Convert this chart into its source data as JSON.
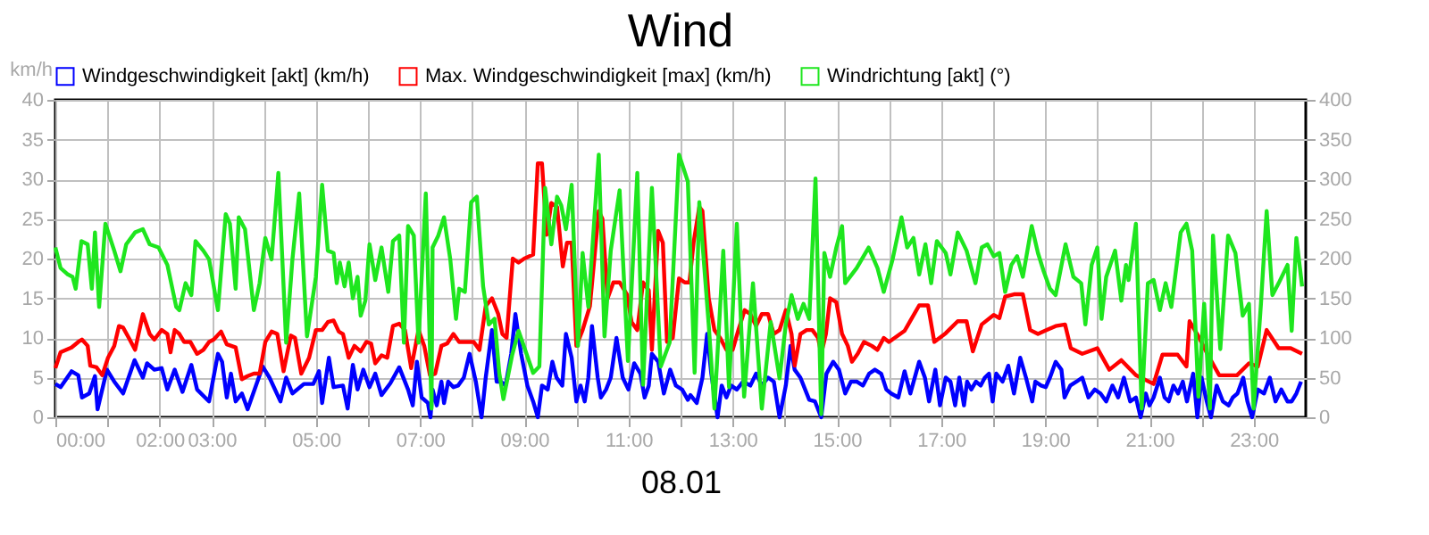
{
  "chart_data": {
    "type": "line",
    "title": "Wind",
    "xlabel": "08.01",
    "ylabel": "km/h",
    "xlim": [
      0,
      24
    ],
    "ylim": [
      0,
      40
    ],
    "y2lim": [
      0,
      400
    ],
    "xticks": [
      {
        "value": 0,
        "label": "00:00"
      },
      {
        "value": 1,
        "label": null
      },
      {
        "value": 2,
        "label": "02:00"
      },
      {
        "value": 3,
        "label": "03:00"
      },
      {
        "value": 4,
        "label": null
      },
      {
        "value": 5,
        "label": "05:00"
      },
      {
        "value": 6,
        "label": null
      },
      {
        "value": 7,
        "label": "07:00"
      },
      {
        "value": 8,
        "label": null
      },
      {
        "value": 9,
        "label": "09:00"
      },
      {
        "value": 10,
        "label": null
      },
      {
        "value": 11,
        "label": "11:00"
      },
      {
        "value": 12,
        "label": null
      },
      {
        "value": 13,
        "label": "13:00"
      },
      {
        "value": 14,
        "label": null
      },
      {
        "value": 15,
        "label": "15:00"
      },
      {
        "value": 16,
        "label": null
      },
      {
        "value": 17,
        "label": "17:00"
      },
      {
        "value": 18,
        "label": null
      },
      {
        "value": 19,
        "label": "19:00"
      },
      {
        "value": 20,
        "label": null
      },
      {
        "value": 21,
        "label": "21:00"
      },
      {
        "value": 22,
        "label": null
      },
      {
        "value": 23,
        "label": "23:00"
      }
    ],
    "yticks": [
      0,
      5,
      10,
      15,
      20,
      25,
      30,
      35,
      40
    ],
    "y2ticks": [
      0,
      50,
      100,
      150,
      200,
      250,
      300,
      350,
      400
    ],
    "grid": true,
    "legend": "top",
    "series": [
      {
        "name": "Windgeschwindigkeit [akt] (km/h)",
        "color": "#0000ff",
        "x": [
          0,
          0.1,
          0.31,
          0.44,
          0.51,
          0.65,
          0.76,
          0.81,
          0.99,
          1.13,
          1.3,
          1.52,
          1.68,
          1.76,
          1.9,
          2.04,
          2.15,
          2.29,
          2.44,
          2.61,
          2.72,
          2.95,
          3.12,
          3.2,
          3.29,
          3.37,
          3.46,
          3.58,
          3.69,
          3.98,
          4.11,
          4.32,
          4.43,
          4.55,
          4.77,
          4.95,
          5.06,
          5.12,
          5.25,
          5.34,
          5.52,
          5.61,
          5.71,
          5.8,
          5.91,
          6.03,
          6.14,
          6.26,
          6.43,
          6.6,
          6.77,
          6.86,
          6.94,
          7.03,
          7.15,
          7.2,
          7.24,
          7.32,
          7.41,
          7.46,
          7.54,
          7.64,
          7.73,
          7.84,
          7.95,
          8.07,
          8.18,
          8.26,
          8.38,
          8.47,
          8.55,
          8.64,
          8.75,
          8.83,
          8.94,
          9.06,
          9.17,
          9.26,
          9.34,
          9.45,
          9.54,
          9.62,
          9.73,
          9.8,
          9.91,
          10.0,
          10.08,
          10.16,
          10.23,
          10.3,
          10.41,
          10.47,
          10.57,
          10.66,
          10.77,
          10.89,
          11.0,
          11.11,
          11.23,
          11.31,
          11.39,
          11.45,
          11.57,
          11.68,
          11.8,
          11.91,
          12.03,
          12.14,
          12.19,
          12.31,
          12.42,
          12.51,
          12.59,
          12.71,
          12.79,
          12.88,
          12.97,
          13.08,
          13.2,
          13.34,
          13.45,
          13.56,
          13.68,
          13.79,
          13.9,
          14.02,
          14.11,
          14.19,
          14.3,
          14.47,
          14.58,
          14.7,
          14.8,
          14.93,
          15.04,
          15.16,
          15.27,
          15.38,
          15.5,
          15.62,
          15.73,
          15.85,
          15.95,
          16.04,
          16.18,
          16.3,
          16.41,
          16.58,
          16.69,
          16.77,
          16.89,
          16.98,
          17.09,
          17.18,
          17.27,
          17.35,
          17.44,
          17.5,
          17.58,
          17.67,
          17.76,
          17.84,
          17.92,
          17.99,
          18.06,
          18.18,
          18.29,
          18.4,
          18.52,
          18.63,
          18.75,
          18.81,
          18.92,
          19.01,
          19.09,
          19.2,
          19.31,
          19.37,
          19.48,
          19.6,
          19.71,
          19.83,
          19.95,
          20.06,
          20.17,
          20.29,
          20.4,
          20.51,
          20.63,
          20.74,
          20.83,
          20.93,
          21.0,
          21.08,
          21.2,
          21.29,
          21.37,
          21.46,
          21.55,
          21.64,
          21.72,
          21.84,
          21.92,
          22.0,
          22.1,
          22.18,
          22.29,
          22.41,
          22.52,
          22.6,
          22.69,
          22.8,
          22.88,
          22.97,
          23.08,
          23.2,
          23.31,
          23.42,
          23.53,
          23.65,
          23.73,
          23.82,
          23.91
        ],
        "values": [
          4.2,
          3.8,
          5.8,
          5.3,
          2.5,
          3,
          5.2,
          1,
          6,
          4.5,
          3,
          7.2,
          5,
          6.8,
          6,
          6.2,
          3.5,
          6,
          3.2,
          6.6,
          3.5,
          2,
          8,
          7,
          2.5,
          5.5,
          2,
          3,
          1,
          6.4,
          5,
          2,
          5,
          3,
          4.2,
          4.2,
          5.8,
          1.8,
          7.5,
          3.8,
          4,
          1.1,
          6.6,
          3.5,
          6,
          3.8,
          5.5,
          2.8,
          4.3,
          6.3,
          3.5,
          1.5,
          7,
          2.5,
          1.8,
          0,
          3.5,
          1.5,
          4.5,
          1.8,
          4.5,
          3.8,
          4,
          5,
          8,
          4.5,
          0,
          5,
          11,
          4.5,
          4.5,
          4,
          8,
          13,
          8,
          4,
          2,
          0,
          4,
          3.5,
          7,
          5,
          4,
          10.5,
          7.5,
          2,
          4,
          2,
          5,
          11.5,
          5,
          2.5,
          3.5,
          5,
          10,
          5,
          3.5,
          6.8,
          5.5,
          2.5,
          4,
          8,
          7,
          3,
          6,
          4,
          3.5,
          2.2,
          2.8,
          1.8,
          5,
          10.5,
          5.5,
          0,
          4,
          2.5,
          4,
          3.5,
          4.5,
          4,
          5.5,
          4,
          5,
          4.5,
          0,
          4,
          9,
          6,
          5,
          2.2,
          2,
          0,
          5.5,
          7,
          6,
          3,
          4.5,
          4.5,
          4,
          5.5,
          6,
          5.5,
          3.5,
          3,
          2.5,
          5.8,
          3,
          7,
          5,
          2,
          6,
          1.5,
          5,
          4.5,
          1.5,
          5,
          1.5,
          4.5,
          3.5,
          4.5,
          4,
          5,
          5.5,
          2,
          5.5,
          4.5,
          6.5,
          3,
          7.5,
          5,
          2,
          4.5,
          4,
          3.8,
          5,
          7,
          6,
          2.5,
          4,
          4.5,
          5,
          2.5,
          3.5,
          3,
          2,
          4,
          2.5,
          5,
          2,
          2.5,
          0,
          3,
          1.5,
          2.5,
          5,
          2.5,
          2,
          4,
          3,
          4.5,
          2,
          5.5,
          0,
          5,
          2,
          0,
          4,
          2,
          1.5,
          2.5,
          3,
          5,
          2,
          0,
          3.5,
          3,
          5,
          2,
          3.5,
          2,
          2,
          3,
          4.5
        ]
      },
      {
        "name": "Max. Windgeschwindigkeit [max] (km/h)",
        "color": "#ff0000",
        "x": [
          0,
          0.1,
          0.31,
          0.44,
          0.51,
          0.62,
          0.67,
          0.79,
          0.9,
          1.01,
          1.13,
          1.22,
          1.3,
          1.41,
          1.53,
          1.68,
          1.81,
          1.9,
          2.04,
          2.15,
          2.21,
          2.29,
          2.38,
          2.47,
          2.59,
          2.72,
          2.84,
          2.95,
          3.04,
          3.18,
          3.29,
          3.46,
          3.58,
          3.69,
          3.81,
          3.92,
          4.03,
          4.15,
          4.26,
          4.38,
          4.52,
          4.6,
          4.72,
          4.87,
          5.0,
          5.12,
          5.23,
          5.34,
          5.44,
          5.52,
          5.63,
          5.74,
          5.86,
          5.97,
          6.06,
          6.14,
          6.26,
          6.37,
          6.48,
          6.6,
          6.71,
          6.83,
          6.97,
          7.08,
          7.19,
          7.29,
          7.41,
          7.52,
          7.64,
          7.75,
          7.86,
          8.03,
          8.14,
          8.26,
          8.38,
          8.5,
          8.58,
          8.66,
          8.78,
          8.89,
          9.0,
          9.17,
          9.26,
          9.34,
          9.43,
          9.52,
          9.63,
          9.74,
          9.82,
          9.91,
          10.0,
          10.12,
          10.26,
          10.43,
          10.5,
          10.6,
          10.71,
          10.83,
          10.97,
          11.06,
          11.17,
          11.28,
          11.39,
          11.45,
          11.57,
          11.66,
          11.74,
          11.85,
          11.97,
          12.08,
          12.17,
          12.25,
          12.36,
          12.42,
          12.54,
          12.65,
          12.76,
          12.88,
          13.0,
          13.11,
          13.23,
          13.34,
          13.45,
          13.56,
          13.68,
          13.79,
          13.9,
          14.02,
          14.13,
          14.19,
          14.3,
          14.42,
          14.53,
          14.64,
          14.7,
          14.79,
          14.87,
          14.99,
          15.1,
          15.21,
          15.29,
          15.4,
          15.52,
          15.67,
          15.78,
          15.9,
          16.0,
          16.3,
          16.58,
          16.75,
          16.87,
          17.09,
          17.32,
          17.49,
          17.61,
          17.78,
          18.01,
          18.12,
          18.23,
          18.4,
          18.57,
          18.71,
          18.86,
          19.03,
          19.2,
          19.38,
          19.49,
          19.71,
          20.0,
          20.23,
          20.46,
          20.74,
          21.08,
          21.25,
          21.54,
          21.71,
          21.77,
          21.94,
          22.11,
          22.34,
          22.68,
          22.91,
          23.08,
          23.25,
          23.48,
          23.71,
          23.93
        ],
        "values": [
          6.2,
          8.2,
          8.8,
          9.5,
          9.8,
          9,
          6.5,
          6.3,
          5.3,
          7.5,
          9,
          11.5,
          11.3,
          10,
          8.5,
          13,
          10.5,
          9.8,
          11,
          10.5,
          8.2,
          11,
          10.5,
          9.5,
          9.5,
          8,
          8.5,
          9.5,
          9.8,
          10.8,
          9.2,
          8.8,
          4.8,
          5.2,
          5.5,
          5.5,
          9.5,
          10.8,
          10.5,
          5.8,
          10.3,
          10,
          5.5,
          7.5,
          11,
          11,
          12,
          12.2,
          10.8,
          10.5,
          7.5,
          9,
          8.3,
          9.5,
          9.3,
          6.8,
          7.8,
          7.5,
          11.5,
          11.8,
          11,
          6.2,
          11,
          9,
          5.3,
          5.5,
          9,
          9.3,
          10.5,
          9.5,
          9.5,
          9.5,
          8.5,
          14,
          15,
          13,
          10.5,
          10,
          20,
          19.5,
          20,
          20.5,
          32,
          32,
          23,
          27,
          26.5,
          19,
          22,
          22,
          9,
          11,
          14,
          26,
          25,
          15,
          17,
          17,
          15.5,
          12,
          11,
          17,
          16,
          8.5,
          23.5,
          22,
          9.5,
          10,
          17.5,
          17,
          17,
          22,
          26.5,
          26,
          15,
          11,
          10,
          8.5,
          8.5,
          11,
          13.5,
          13,
          11.5,
          13,
          13,
          10.5,
          11,
          13.5,
          10.5,
          6.5,
          10.5,
          11,
          11,
          10,
          8,
          10.5,
          15,
          14.5,
          10.5,
          9,
          7,
          8,
          9.5,
          9,
          8.5,
          10,
          9.5,
          10.9,
          14.1,
          14.1,
          9.5,
          10.6,
          12.1,
          12.1,
          8.3,
          11.7,
          12.9,
          12.5,
          15.2,
          15.5,
          15.5,
          11,
          10.5,
          11,
          11.5,
          11.7,
          8.7,
          8,
          8.7,
          6,
          7.2,
          5.3,
          4.2,
          7.9,
          7.9,
          6.4,
          12.1,
          10.2,
          8,
          5.3,
          5.3,
          6.8,
          6.4,
          11,
          8.7,
          8.7,
          8
        ]
      },
      {
        "name": "Windrichtung [akt] (°)",
        "color": "#1ee61e",
        "axis": "y2",
        "x": [
          0,
          0.1,
          0.24,
          0.33,
          0.39,
          0.5,
          0.62,
          0.7,
          0.76,
          0.84,
          0.96,
          1.13,
          1.25,
          1.36,
          1.53,
          1.68,
          1.81,
          1.98,
          2.15,
          2.32,
          2.38,
          2.5,
          2.61,
          2.69,
          2.84,
          2.95,
          3.12,
          3.27,
          3.35,
          3.46,
          3.52,
          3.64,
          3.81,
          3.92,
          4.03,
          4.15,
          4.28,
          4.43,
          4.55,
          4.68,
          4.83,
          5.0,
          5.12,
          5.23,
          5.34,
          5.4,
          5.46,
          5.55,
          5.63,
          5.71,
          5.8,
          5.86,
          5.95,
          6.03,
          6.14,
          6.26,
          6.39,
          6.48,
          6.6,
          6.69,
          6.77,
          6.88,
          6.97,
          7.11,
          7.22,
          7.24,
          7.35,
          7.46,
          7.58,
          7.69,
          7.75,
          7.86,
          7.98,
          8.09,
          8.21,
          8.32,
          8.43,
          8.52,
          8.6,
          8.77,
          8.89,
          9.17,
          9.29,
          9.4,
          9.52,
          9.63,
          9.71,
          9.8,
          9.91,
          10.03,
          10.12,
          10.23,
          10.43,
          10.54,
          10.66,
          10.83,
          10.99,
          11.17,
          11.28,
          11.45,
          11.62,
          11.79,
          11.97,
          12.14,
          12.27,
          12.36,
          12.54,
          12.65,
          12.82,
          12.93,
          13.08,
          13.22,
          13.39,
          13.56,
          13.73,
          13.9,
          14.02,
          14.13,
          14.25,
          14.36,
          14.47,
          14.59,
          14.7,
          14.76,
          14.87,
          14.99,
          15.1,
          15.16,
          15.38,
          15.61,
          15.78,
          15.9,
          16.07,
          16.24,
          16.35,
          16.47,
          16.58,
          16.7,
          16.81,
          16.92,
          17.09,
          17.18,
          17.32,
          17.49,
          17.66,
          17.78,
          17.89,
          18.01,
          18.12,
          18.23,
          18.35,
          18.46,
          18.57,
          18.74,
          18.86,
          18.97,
          19.09,
          19.2,
          19.39,
          19.54,
          19.69,
          19.77,
          19.89,
          20.0,
          20.08,
          20.17,
          20.34,
          20.46,
          20.55,
          20.6,
          20.74,
          20.85,
          20.97,
          21.08,
          21.2,
          21.31,
          21.42,
          21.6,
          21.71,
          21.82,
          21.94,
          22.05,
          22.16,
          22.22,
          22.36,
          22.51,
          22.65,
          22.79,
          22.91,
          23.0,
          23.14,
          23.25,
          23.36,
          23.48,
          23.65,
          23.73,
          23.82,
          23.93
        ],
        "values": [
          214,
          188,
          180,
          177,
          162,
          222,
          218,
          162,
          233,
          139,
          244,
          210,
          184,
          218,
          233,
          237,
          218,
          214,
          192,
          139,
          135,
          169,
          154,
          222,
          210,
          199,
          135,
          256,
          244,
          162,
          252,
          237,
          135,
          169,
          226,
          199,
          308,
          94,
          199,
          282,
          102,
          177,
          293,
          210,
          207,
          169,
          195,
          165,
          195,
          150,
          177,
          128,
          147,
          218,
          173,
          214,
          158,
          222,
          229,
          94,
          241,
          229,
          94,
          282,
          11,
          214,
          229,
          252,
          199,
          124,
          162,
          158,
          271,
          278,
          165,
          117,
          124,
          56,
          23,
          79,
          109,
          56,
          64,
          289,
          218,
          278,
          267,
          237,
          293,
          90,
          207,
          139,
          331,
          102,
          210,
          286,
          71,
          308,
          41,
          289,
          64,
          94,
          331,
          297,
          56,
          271,
          117,
          11,
          210,
          38,
          244,
          26,
          169,
          11,
          120,
          49,
          117,
          154,
          124,
          143,
          124,
          301,
          4,
          207,
          177,
          214,
          241,
          169,
          188,
          214,
          188,
          158,
          199,
          252,
          214,
          226,
          180,
          218,
          169,
          222,
          207,
          180,
          233,
          210,
          169,
          214,
          218,
          203,
          207,
          158,
          192,
          203,
          177,
          241,
          207,
          184,
          162,
          154,
          218,
          177,
          169,
          117,
          192,
          214,
          124,
          177,
          210,
          147,
          192,
          173,
          244,
          11,
          169,
          173,
          135,
          169,
          139,
          233,
          244,
          210,
          26,
          143,
          11,
          229,
          86,
          229,
          207,
          128,
          143,
          11,
          143,
          260,
          154,
          169,
          192,
          109,
          226,
          165
        ]
      }
    ]
  }
}
